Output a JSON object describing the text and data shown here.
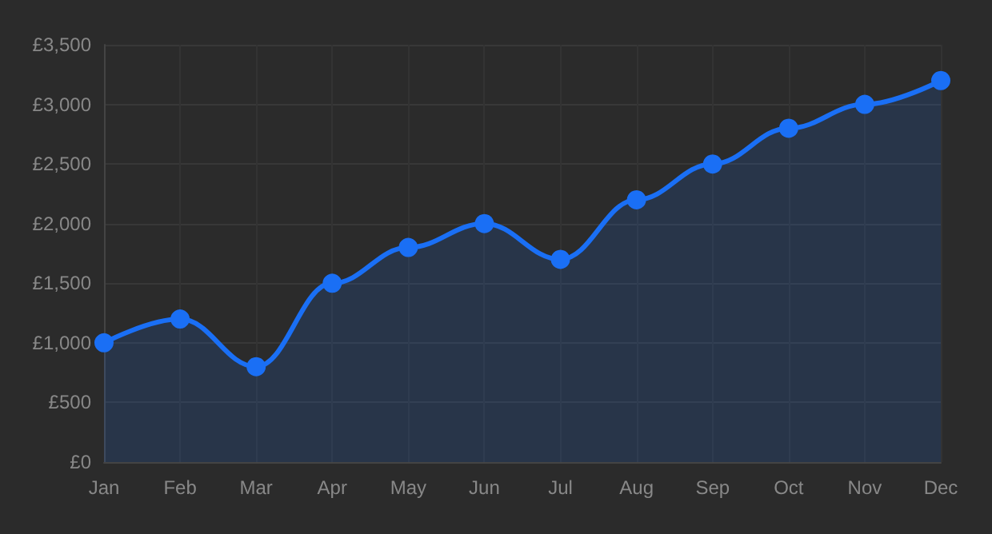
{
  "chart_data": {
    "type": "area",
    "categories": [
      "Jan",
      "Feb",
      "Mar",
      "Apr",
      "May",
      "Jun",
      "Jul",
      "Aug",
      "Sep",
      "Oct",
      "Nov",
      "Dec"
    ],
    "series": [
      {
        "color": "#1a6ff5",
        "values": [
          1000,
          1200,
          800,
          1500,
          1800,
          2000,
          1700,
          2200,
          2500,
          2800,
          3000,
          3200
        ]
      }
    ],
    "ylim": [
      0,
      3500
    ],
    "yticks": [
      {
        "value": 0,
        "label": "£0"
      },
      {
        "value": 500,
        "label": "£500"
      },
      {
        "value": 1000,
        "label": "£1,000"
      },
      {
        "value": 1500,
        "label": "£1,500"
      },
      {
        "value": 2000,
        "label": "£2,000"
      },
      {
        "value": 2500,
        "label": "£2,500"
      },
      {
        "value": 3000,
        "label": "£3,000"
      },
      {
        "value": 3500,
        "label": "£3,500"
      }
    ],
    "grid": true,
    "marker": "circle",
    "line_style": "solid"
  }
}
